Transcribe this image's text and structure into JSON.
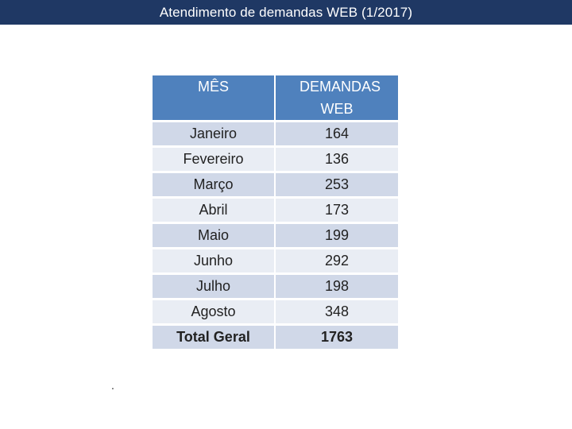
{
  "title": "Atendimento de demandas WEB (1/2017)",
  "table": {
    "headers": [
      "MÊS",
      "DEMANDAS WEB"
    ],
    "rows": [
      {
        "month": "Janeiro",
        "value": "164"
      },
      {
        "month": "Fevereiro",
        "value": "136"
      },
      {
        "month": "Março",
        "value": "253"
      },
      {
        "month": "Abril",
        "value": "173"
      },
      {
        "month": "Maio",
        "value": "199"
      },
      {
        "month": "Junho",
        "value": "292"
      },
      {
        "month": "Julho",
        "value": "198"
      },
      {
        "month": "Agosto",
        "value": "348"
      }
    ],
    "total": {
      "label": "Total Geral",
      "value": "1763"
    }
  },
  "footnote_mark": ".",
  "colors": {
    "title_bar": "#1f3864",
    "header": "#4f81bd",
    "row_dark": "#d0d8e8",
    "row_light": "#e9edf4"
  }
}
